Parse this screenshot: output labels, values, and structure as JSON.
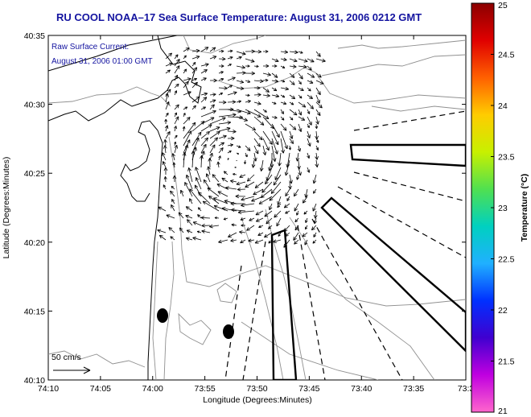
{
  "title": "RU COOL  NOAA–17  Sea Surface Temperature:  August 31, 2006 0212 GMT",
  "annotation": {
    "line1": "Raw Surface Current:",
    "line2": "August 31, 2006 01:00 GMT"
  },
  "scale_label": "50 cm/s",
  "x_axis": {
    "label": "Longitude (Degrees:Minutes)",
    "ticks": [
      "74:10",
      "74:05",
      "74:00",
      "73:55",
      "73:50",
      "73:45",
      "73:40",
      "73:35",
      "73:3"
    ]
  },
  "y_axis": {
    "label": "Latitude (Degrees:Minutes)",
    "ticks": [
      "40:35",
      "40:30",
      "40:25",
      "40:20",
      "40:15",
      "40:10"
    ]
  },
  "colorbar": {
    "label": "Temperature (°C)",
    "ticks": [
      "25",
      "24.5",
      "24",
      "23.5",
      "23",
      "22.5",
      "22",
      "21.5",
      "21"
    ],
    "colors": [
      "#8b0000",
      "#e00000",
      "#ff6000",
      "#ffcc00",
      "#c8f000",
      "#50e050",
      "#00d0c0",
      "#20b0ff",
      "#0030ff",
      "#4000d0",
      "#c000e0",
      "#ff66cc"
    ]
  }
}
